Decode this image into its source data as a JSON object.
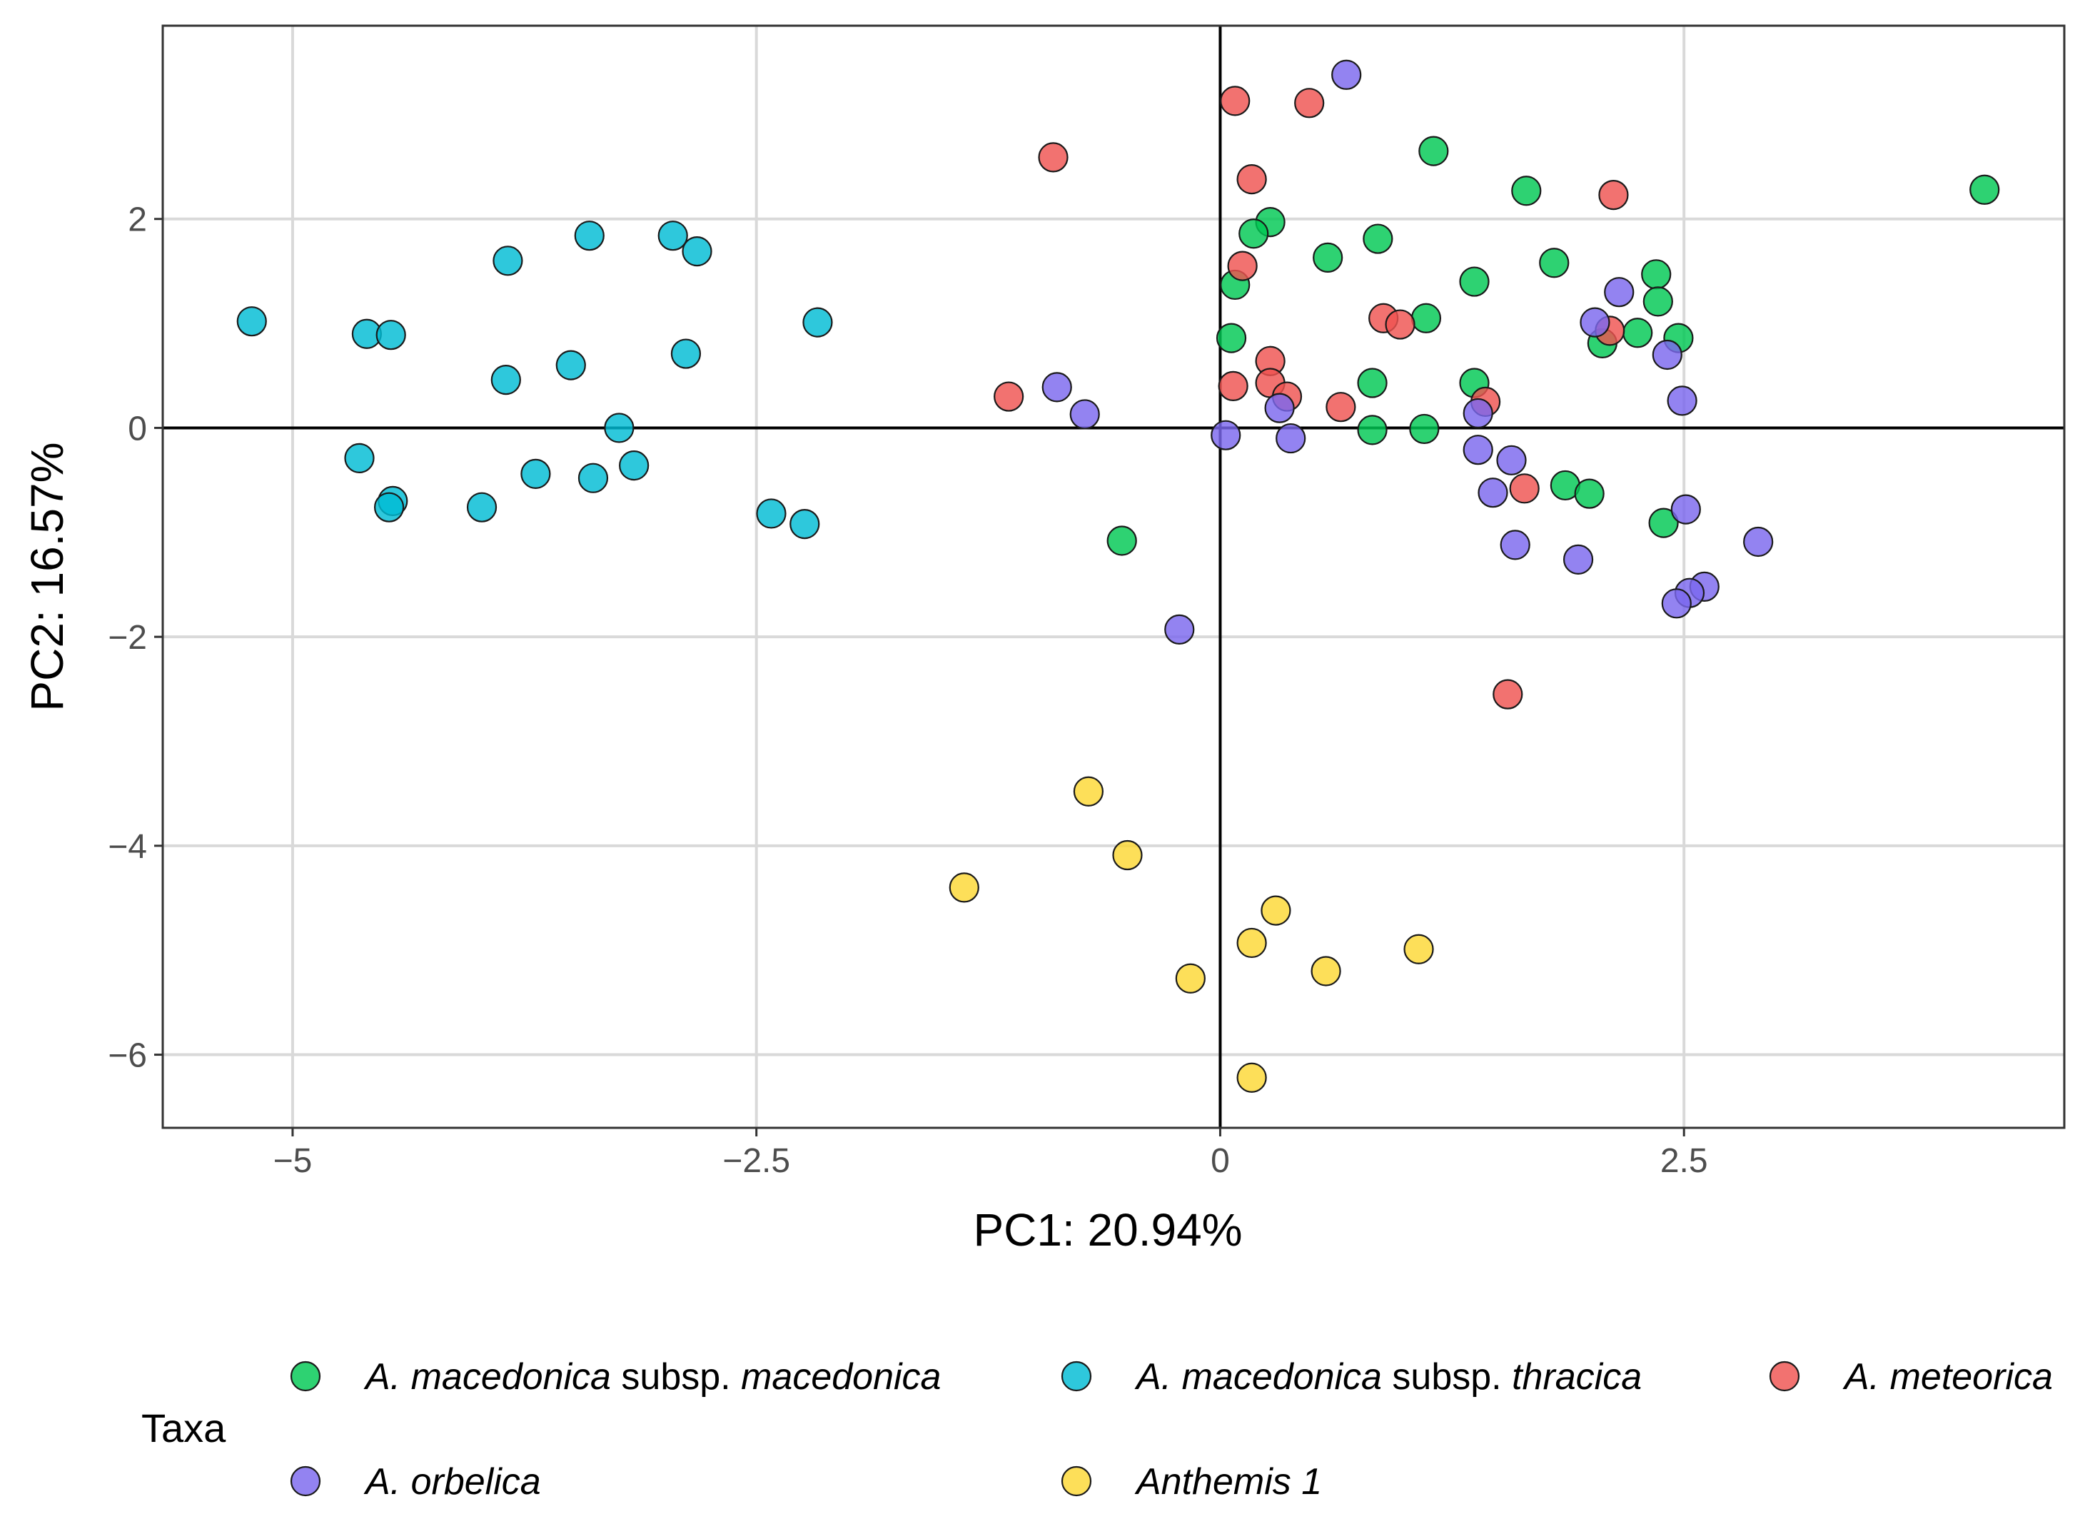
{
  "chart_data": {
    "type": "scatter",
    "xlabel": "PC1: 20.94%",
    "ylabel": "PC2: 16.57%",
    "xlim": [
      -5.7,
      4.55
    ],
    "ylim": [
      -6.7,
      3.85
    ],
    "xticks": [
      -5,
      -2.5,
      0,
      2.5
    ],
    "xtick_labels": [
      "−5",
      "−2.5",
      "0",
      "2.5"
    ],
    "yticks": [
      2,
      0,
      -2,
      -4,
      -6
    ],
    "ytick_labels": [
      "2",
      "0",
      "−2",
      "−4",
      "−6"
    ],
    "grid": true,
    "reference_lines": {
      "x": 0,
      "y": 0
    },
    "legend": {
      "title": "Taxa",
      "position": "bottom",
      "entries": [
        {
          "series": 0,
          "parts": [
            {
              "text": "A. macedonica",
              "italic": true
            },
            {
              "text": " subsp. ",
              "italic": false
            },
            {
              "text": "macedonica",
              "italic": true
            }
          ]
        },
        {
          "series": 1,
          "parts": [
            {
              "text": "A. macedonica",
              "italic": true
            },
            {
              "text": " subsp.  ",
              "italic": false
            },
            {
              "text": "thracica",
              "italic": true
            }
          ]
        },
        {
          "series": 2,
          "parts": [
            {
              "text": "A. meteorica",
              "italic": true
            }
          ]
        },
        {
          "series": 3,
          "parts": [
            {
              "text": "A. orbelica",
              "italic": true
            }
          ]
        },
        {
          "series": 4,
          "parts": [
            {
              "text": "Anthemis 1",
              "italic": true
            }
          ]
        }
      ]
    },
    "series": [
      {
        "name": "A. macedonica subsp. macedonica",
        "color": "#00c853",
        "points": [
          [
            4.12,
            2.28
          ],
          [
            1.15,
            2.65
          ],
          [
            1.65,
            2.27
          ],
          [
            1.8,
            1.58
          ],
          [
            0.27,
            1.97
          ],
          [
            0.18,
            1.86
          ],
          [
            0.58,
            1.63
          ],
          [
            0.85,
            1.81
          ],
          [
            0.08,
            1.37
          ],
          [
            1.37,
            1.4
          ],
          [
            1.11,
            1.05
          ],
          [
            0.06,
            0.86
          ],
          [
            2.35,
            1.47
          ],
          [
            2.36,
            1.21
          ],
          [
            2.25,
            0.91
          ],
          [
            2.47,
            0.86
          ],
          [
            2.06,
            0.81
          ],
          [
            0.82,
            0.43
          ],
          [
            1.37,
            0.43
          ],
          [
            0.82,
            -0.02
          ],
          [
            1.1,
            -0.01
          ],
          [
            1.86,
            -0.55
          ],
          [
            1.99,
            -0.63
          ],
          [
            2.39,
            -0.91
          ],
          [
            -0.53,
            -1.08
          ]
        ]
      },
      {
        "name": "A. macedonica subsp. thracica",
        "color": "#00bcd4",
        "points": [
          [
            -5.22,
            1.02
          ],
          [
            -4.6,
            0.9
          ],
          [
            -4.47,
            0.89
          ],
          [
            -3.84,
            1.6
          ],
          [
            -3.4,
            1.84
          ],
          [
            -2.95,
            1.84
          ],
          [
            -2.82,
            1.69
          ],
          [
            -2.88,
            0.71
          ],
          [
            -2.17,
            1.01
          ],
          [
            -3.85,
            0.46
          ],
          [
            -3.5,
            0.6
          ],
          [
            -3.24,
            0.0
          ],
          [
            -4.64,
            -0.29
          ],
          [
            -4.46,
            -0.7
          ],
          [
            -4.48,
            -0.76
          ],
          [
            -3.69,
            -0.44
          ],
          [
            -3.38,
            -0.48
          ],
          [
            -3.16,
            -0.36
          ],
          [
            -3.98,
            -0.76
          ],
          [
            -2.42,
            -0.82
          ],
          [
            -2.24,
            -0.92
          ]
        ]
      },
      {
        "name": "A. meteorica",
        "color": "#ef5350",
        "points": [
          [
            0.08,
            3.13
          ],
          [
            0.48,
            3.11
          ],
          [
            -0.9,
            2.59
          ],
          [
            0.17,
            2.38
          ],
          [
            2.12,
            2.23
          ],
          [
            0.12,
            1.55
          ],
          [
            0.88,
            1.05
          ],
          [
            0.97,
            0.99
          ],
          [
            2.1,
            0.93
          ],
          [
            0.27,
            0.64
          ],
          [
            0.07,
            0.4
          ],
          [
            0.27,
            0.43
          ],
          [
            0.36,
            0.3
          ],
          [
            -1.14,
            0.3
          ],
          [
            0.65,
            0.2
          ],
          [
            1.43,
            0.25
          ],
          [
            1.64,
            -0.58
          ],
          [
            1.55,
            -2.55
          ]
        ]
      },
      {
        "name": "A. orbelica",
        "color": "#7b68ee",
        "points": [
          [
            0.68,
            3.38
          ],
          [
            2.15,
            1.3
          ],
          [
            2.02,
            1.01
          ],
          [
            2.41,
            0.7
          ],
          [
            2.49,
            0.26
          ],
          [
            -0.88,
            0.39
          ],
          [
            -0.73,
            0.13
          ],
          [
            0.32,
            0.19
          ],
          [
            1.39,
            0.14
          ],
          [
            0.03,
            -0.07
          ],
          [
            0.38,
            -0.1
          ],
          [
            1.39,
            -0.21
          ],
          [
            1.57,
            -0.31
          ],
          [
            1.47,
            -0.62
          ],
          [
            2.51,
            -0.78
          ],
          [
            2.9,
            -1.09
          ],
          [
            1.59,
            -1.12
          ],
          [
            1.93,
            -1.26
          ],
          [
            -0.22,
            -1.93
          ],
          [
            2.61,
            -1.52
          ],
          [
            2.53,
            -1.58
          ],
          [
            2.46,
            -1.68
          ]
        ]
      },
      {
        "name": "Anthemis 1",
        "color": "#fdd835",
        "points": [
          [
            -0.71,
            -3.48
          ],
          [
            -0.5,
            -4.09
          ],
          [
            -1.38,
            -4.4
          ],
          [
            0.3,
            -4.62
          ],
          [
            0.17,
            -4.93
          ],
          [
            1.07,
            -4.99
          ],
          [
            0.57,
            -5.2
          ],
          [
            -0.16,
            -5.27
          ],
          [
            0.17,
            -6.22
          ]
        ]
      }
    ]
  }
}
